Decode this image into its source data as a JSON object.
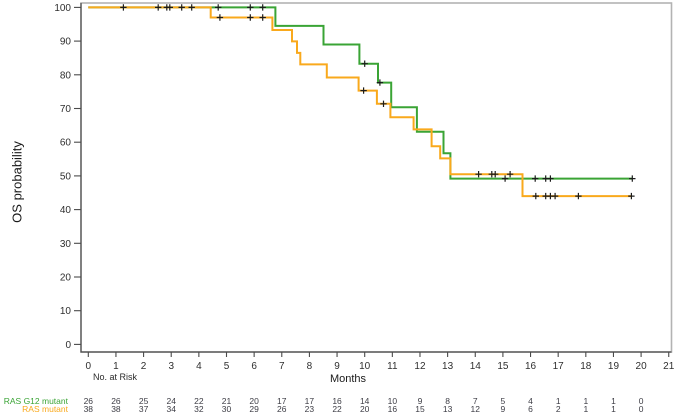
{
  "chart_data": {
    "type": "line",
    "subtype": "kaplan-meier-step",
    "title": "",
    "xlabel": "Months",
    "ylabel": "OS probability",
    "xlim": [
      0,
      21
    ],
    "ylim": [
      0,
      100
    ],
    "xticks": [
      0,
      1,
      2,
      3,
      4,
      5,
      6,
      7,
      8,
      9,
      10,
      11,
      12,
      13,
      14,
      15,
      16,
      17,
      18,
      19,
      20,
      21
    ],
    "yticks": [
      0,
      10,
      20,
      30,
      40,
      50,
      60,
      70,
      80,
      90,
      100
    ],
    "grid": false,
    "legend_position": "risk-table-left",
    "colors": {
      "frame_light": "#b3b3b3",
      "axis_dark": "#4a4a4a",
      "tick_text": "#2f2f2f",
      "risk_text": "#3c3c44",
      "censor_mark": "#1c1c1c",
      "background": "#ffffff"
    },
    "series": [
      {
        "name": "RAS G12 mutant",
        "color": "#3aa435",
        "end_month": 19.68,
        "steps": [
          [
            0,
            100
          ],
          [
            6.77,
            94.5
          ],
          [
            8.51,
            89.0
          ],
          [
            9.81,
            83.3
          ],
          [
            10.48,
            77.7
          ],
          [
            10.96,
            70.4
          ],
          [
            11.89,
            63.1
          ],
          [
            12.85,
            56.7
          ],
          [
            13.1,
            49.2
          ]
        ],
        "censors": [
          [
            1.27,
            100
          ],
          [
            2.53,
            100
          ],
          [
            2.84,
            100
          ],
          [
            2.95,
            100
          ],
          [
            3.38,
            100
          ],
          [
            3.74,
            100
          ],
          [
            4.7,
            100
          ],
          [
            5.86,
            100
          ],
          [
            6.31,
            100
          ],
          [
            10.0,
            83.3
          ],
          [
            10.55,
            77.7
          ],
          [
            15.08,
            49.2
          ],
          [
            16.17,
            49.2
          ],
          [
            16.55,
            49.2
          ],
          [
            16.72,
            49.2
          ],
          [
            19.68,
            49.2
          ]
        ]
      },
      {
        "name": "RAS mutant",
        "color": "#f9a91c",
        "end_month": 19.65,
        "steps": [
          [
            0,
            100
          ],
          [
            4.43,
            97.0
          ],
          [
            6.66,
            93.3
          ],
          [
            7.37,
            89.9
          ],
          [
            7.55,
            86.5
          ],
          [
            7.67,
            83.1
          ],
          [
            8.63,
            79.2
          ],
          [
            9.78,
            75.3
          ],
          [
            10.44,
            71.4
          ],
          [
            10.93,
            67.4
          ],
          [
            11.77,
            63.8
          ],
          [
            12.42,
            58.8
          ],
          [
            12.73,
            55.2
          ],
          [
            13.1,
            50.5
          ],
          [
            15.71,
            44.0
          ]
        ],
        "censors": [
          [
            4.76,
            97
          ],
          [
            5.86,
            97
          ],
          [
            6.31,
            97
          ],
          [
            9.96,
            75.3
          ],
          [
            10.68,
            71.4
          ],
          [
            14.12,
            50.5
          ],
          [
            14.6,
            50.5
          ],
          [
            14.72,
            50.5
          ],
          [
            15.26,
            50.5
          ],
          [
            16.19,
            44
          ],
          [
            16.55,
            44
          ],
          [
            16.72,
            44
          ],
          [
            16.89,
            44
          ],
          [
            17.73,
            44
          ],
          [
            19.65,
            44
          ]
        ]
      }
    ],
    "risk_table": {
      "title": "No. at Risk",
      "months": [
        0,
        1,
        2,
        3,
        4,
        5,
        6,
        7,
        8,
        9,
        10,
        11,
        12,
        13,
        14,
        15,
        16,
        17,
        18,
        19,
        20
      ],
      "rows": [
        {
          "name": "RAS G12 mutant",
          "color": "#3aa435",
          "values": [
            26,
            26,
            25,
            24,
            22,
            21,
            20,
            17,
            17,
            16,
            14,
            10,
            9,
            8,
            7,
            5,
            4,
            1,
            1,
            1,
            0
          ]
        },
        {
          "name": "RAS mutant",
          "color": "#f9a91c",
          "values": [
            38,
            38,
            37,
            34,
            32,
            30,
            29,
            26,
            23,
            22,
            20,
            16,
            15,
            13,
            12,
            9,
            6,
            2,
            1,
            1,
            0
          ]
        }
      ]
    }
  }
}
